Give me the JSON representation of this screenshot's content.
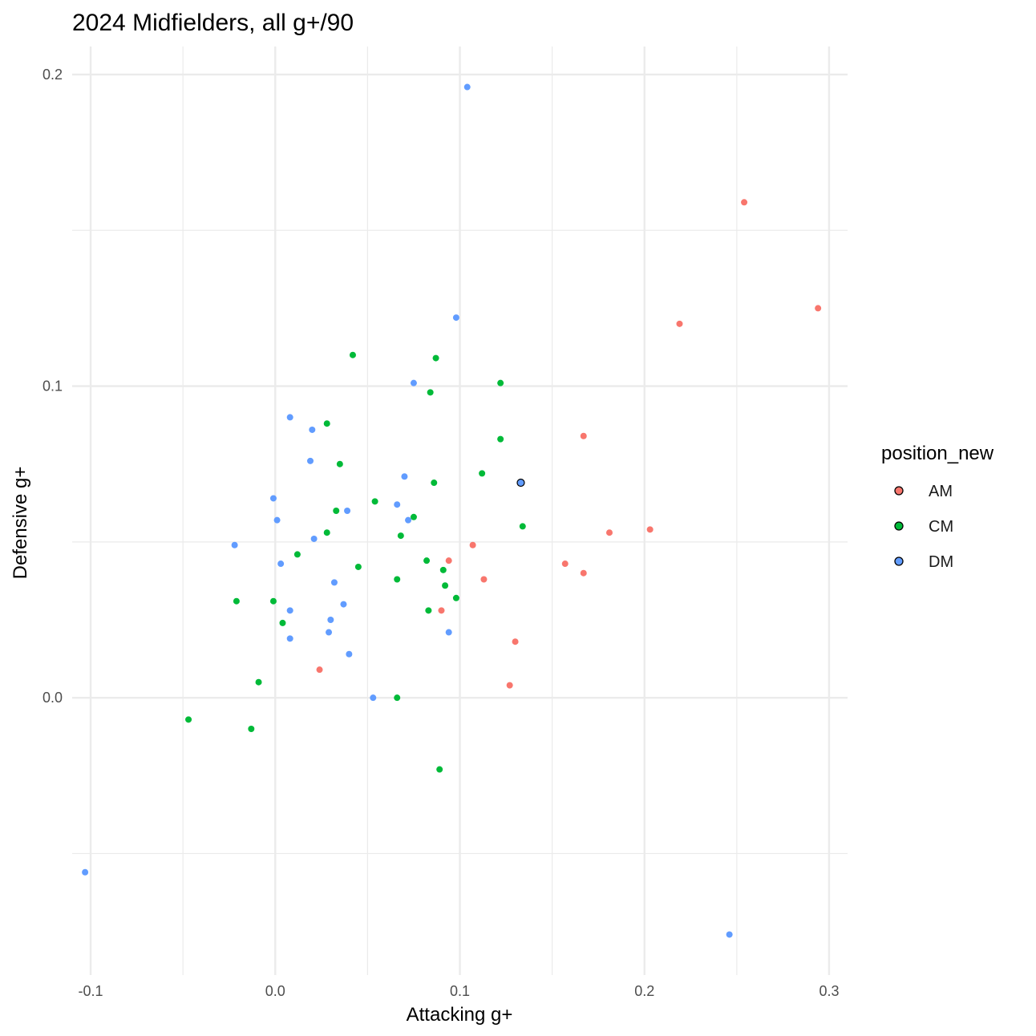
{
  "chart_data": {
    "type": "scatter",
    "title": "2024 Midfielders, all g+/90",
    "xlabel": "Attacking g+",
    "ylabel": "Defensive g+",
    "xlim": [
      -0.11,
      0.31
    ],
    "ylim": [
      -0.089,
      0.209
    ],
    "x_ticks": [
      -0.1,
      0.0,
      0.1,
      0.2,
      0.3
    ],
    "x_tick_labels": [
      "-0.1",
      "0.0",
      "0.1",
      "0.2",
      "0.3"
    ],
    "y_ticks": [
      0.0,
      0.1,
      0.2
    ],
    "y_tick_labels": [
      "0.0",
      "0.1",
      "0.2"
    ],
    "grid": true,
    "legend": {
      "title": "position_new",
      "position": "right"
    },
    "series": [
      {
        "name": "AM",
        "color": "#F8766D",
        "points": [
          [
            0.254,
            0.159
          ],
          [
            0.294,
            0.125
          ],
          [
            0.219,
            0.12
          ],
          [
            0.167,
            0.084
          ],
          [
            0.203,
            0.054
          ],
          [
            0.181,
            0.053
          ],
          [
            0.107,
            0.049
          ],
          [
            0.094,
            0.044
          ],
          [
            0.157,
            0.043
          ],
          [
            0.167,
            0.04
          ],
          [
            0.113,
            0.038
          ],
          [
            0.09,
            0.028
          ],
          [
            0.13,
            0.018
          ],
          [
            0.024,
            0.009
          ],
          [
            0.127,
            0.004
          ]
        ]
      },
      {
        "name": "CM",
        "color": "#00BA38",
        "points": [
          [
            0.042,
            0.11
          ],
          [
            0.087,
            0.109
          ],
          [
            0.122,
            0.101
          ],
          [
            0.084,
            0.098
          ],
          [
            0.028,
            0.088
          ],
          [
            0.122,
            0.083
          ],
          [
            0.035,
            0.075
          ],
          [
            0.112,
            0.072
          ],
          [
            0.086,
            0.069
          ],
          [
            0.054,
            0.063
          ],
          [
            0.033,
            0.06
          ],
          [
            0.075,
            0.058
          ],
          [
            0.134,
            0.055
          ],
          [
            0.028,
            0.053
          ],
          [
            0.068,
            0.052
          ],
          [
            0.012,
            0.046
          ],
          [
            0.082,
            0.044
          ],
          [
            0.045,
            0.042
          ],
          [
            0.091,
            0.041
          ],
          [
            0.066,
            0.038
          ],
          [
            0.092,
            0.036
          ],
          [
            0.098,
            0.032
          ],
          [
            -0.021,
            0.031
          ],
          [
            -0.001,
            0.031
          ],
          [
            0.083,
            0.028
          ],
          [
            0.004,
            0.024
          ],
          [
            -0.009,
            0.005
          ],
          [
            -0.047,
            -0.007
          ],
          [
            -0.013,
            -0.01
          ],
          [
            0.066,
            0.0
          ],
          [
            0.089,
            -0.023
          ]
        ]
      },
      {
        "name": "DM",
        "color": "#619CFF",
        "points": [
          [
            0.104,
            0.196
          ],
          [
            0.098,
            0.122
          ],
          [
            0.075,
            0.101
          ],
          [
            0.008,
            0.09
          ],
          [
            0.02,
            0.086
          ],
          [
            0.019,
            0.076
          ],
          [
            0.07,
            0.071
          ],
          [
            0.133,
            0.069
          ],
          [
            -0.001,
            0.064
          ],
          [
            0.066,
            0.062
          ],
          [
            0.039,
            0.06
          ],
          [
            0.001,
            0.057
          ],
          [
            0.072,
            0.057
          ],
          [
            0.021,
            0.051
          ],
          [
            -0.022,
            0.049
          ],
          [
            0.003,
            0.043
          ],
          [
            0.032,
            0.037
          ],
          [
            0.037,
            0.03
          ],
          [
            0.008,
            0.028
          ],
          [
            0.03,
            0.025
          ],
          [
            0.029,
            0.021
          ],
          [
            0.094,
            0.021
          ],
          [
            0.008,
            0.019
          ],
          [
            0.04,
            0.014
          ],
          [
            0.053,
            0.0
          ],
          [
            -0.103,
            -0.056
          ],
          [
            0.246,
            -0.076
          ]
        ]
      }
    ],
    "highlight": {
      "series": "DM",
      "x": 0.133,
      "y": 0.069
    }
  }
}
